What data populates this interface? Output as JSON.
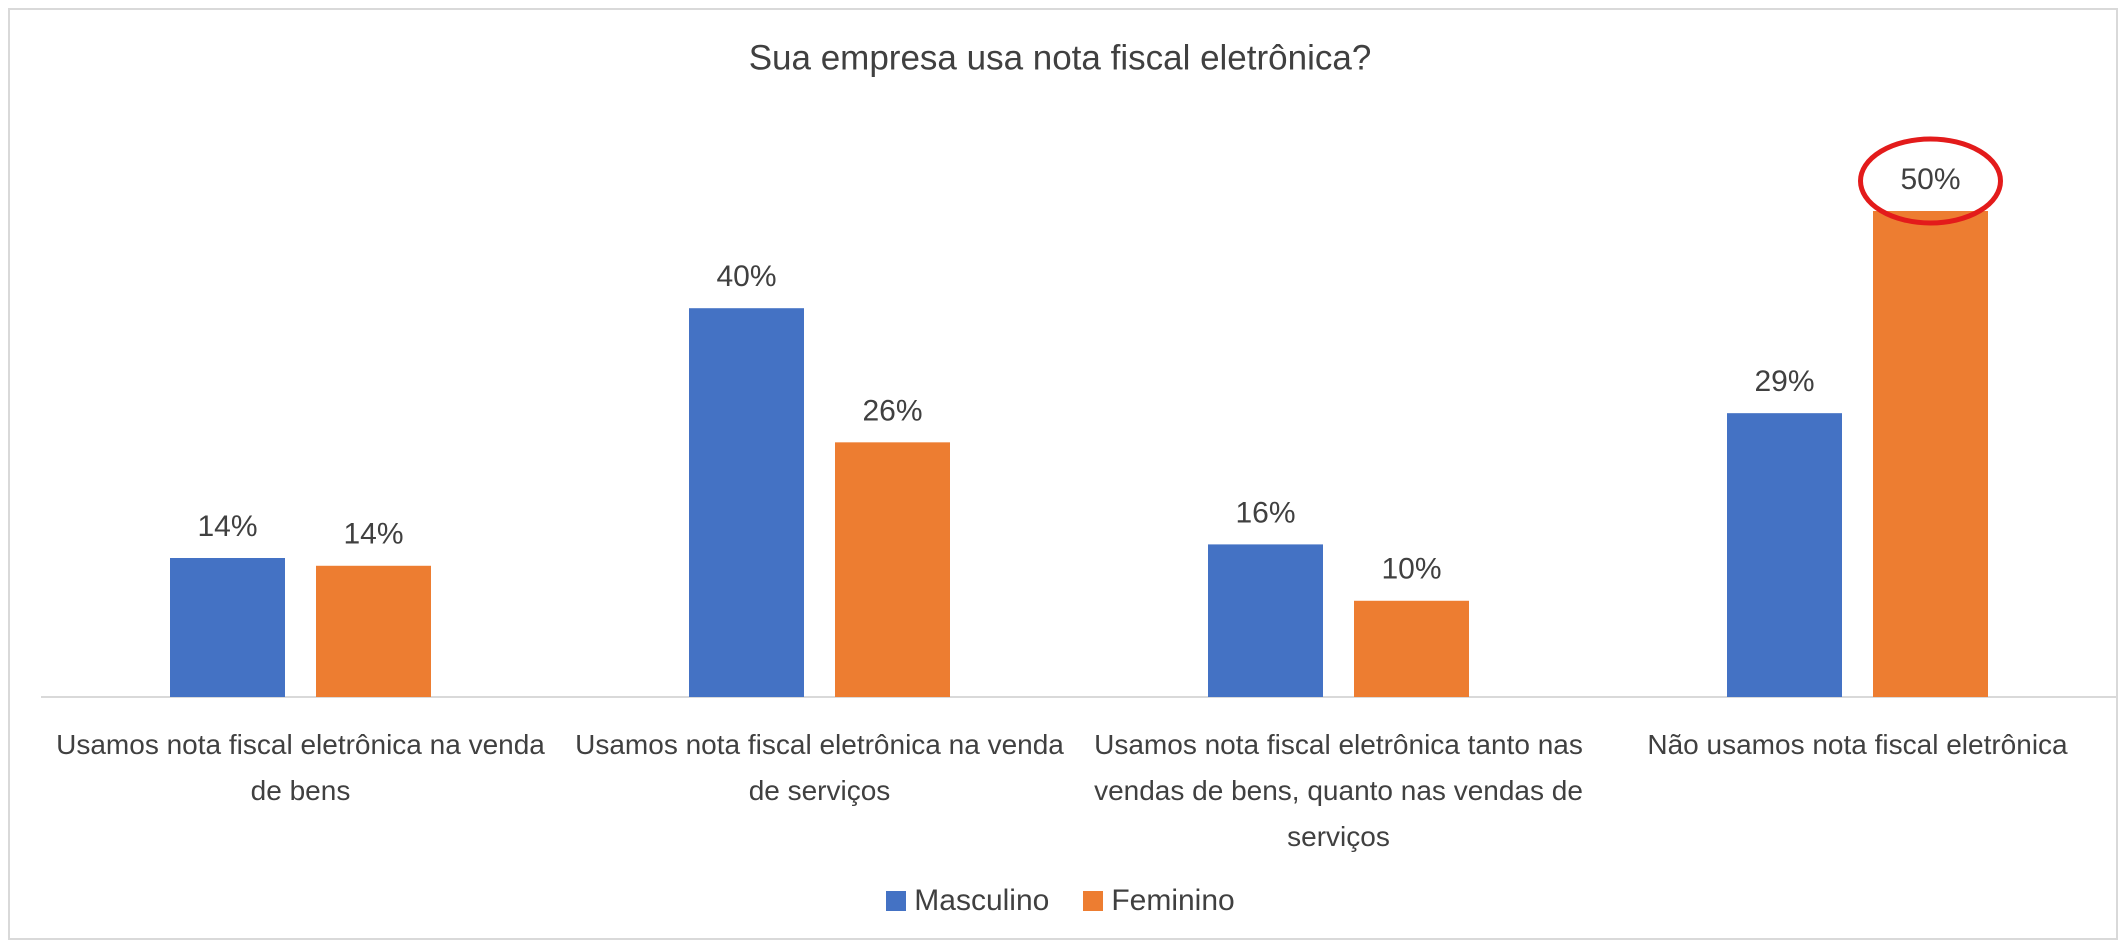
{
  "chart_data": {
    "type": "bar",
    "title": "Sua empresa usa nota fiscal eletrônica?",
    "categories": [
      "Usamos nota fiscal eletrônica na venda de bens",
      "Usamos nota fiscal eletrônica na venda de serviços",
      "Usamos nota fiscal eletrônica tanto nas vendas de bens, quanto nas vendas de serviços",
      "Não usamos nota fiscal eletrônica"
    ],
    "series": [
      {
        "name": "Masculino",
        "color": "#4472c4",
        "values": [
          14.3,
          40,
          15.7,
          29.2
        ],
        "value_labels": [
          "14%",
          "40%",
          "16%",
          "29%"
        ]
      },
      {
        "name": "Feminino",
        "color": "#ed7d31",
        "values": [
          13.5,
          26.2,
          9.9,
          50
        ],
        "value_labels": [
          "14%",
          "26%",
          "10%",
          "50%"
        ]
      }
    ],
    "legend": "bottom"
  }
}
